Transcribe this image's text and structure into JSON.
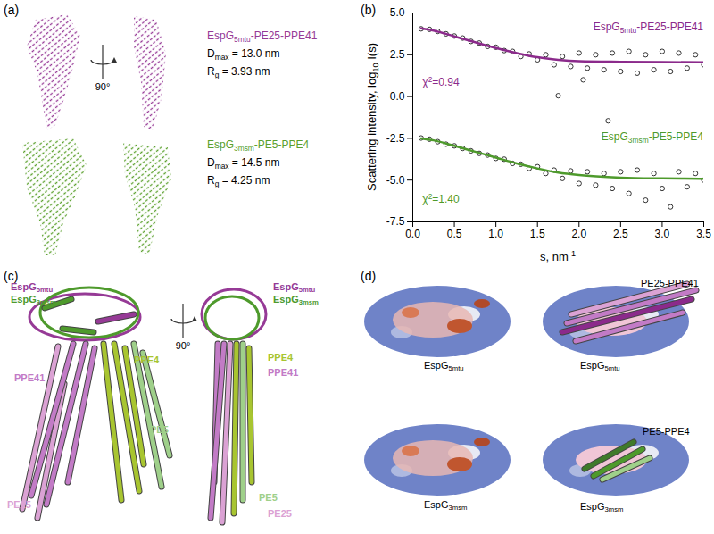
{
  "panel_labels": [
    "(a)",
    "(b)",
    "(c)",
    "(d)"
  ],
  "panel_a": {
    "rotation": "90°",
    "models": [
      {
        "name": [
          "EspG",
          {
            "sub": "5mtu"
          },
          "-PE25-PPE41"
        ],
        "color": "#963a96",
        "dmax": [
          "D",
          {
            "sub": "max"
          },
          " = 13.0 nm"
        ],
        "rg": [
          "R",
          {
            "sub": "g"
          },
          " = 3.93 nm"
        ]
      },
      {
        "name": [
          "EspG",
          {
            "sub": "3msm"
          },
          "-PE5-PPE4"
        ],
        "color": "#5aa02c",
        "dmax": [
          "D",
          {
            "sub": "max"
          },
          " = 14.5 nm"
        ],
        "rg": [
          "R",
          {
            "sub": "g"
          },
          " = 4.25 nm"
        ]
      }
    ]
  },
  "chart_data": {
    "type": "scatter",
    "x_label": [
      "s, nm",
      {
        "sup": "-1"
      }
    ],
    "y_label": [
      "Scattering intensity, log",
      {
        "sub": "10"
      },
      " I(s)"
    ],
    "xlim": [
      0,
      3.5
    ],
    "xticks": [
      {
        "value": 0,
        "label": "0.0"
      },
      0.5,
      {
        "value": 1,
        "label": "1.0"
      },
      1.5,
      {
        "value": 2,
        "label": "2.0"
      },
      2.5,
      {
        "value": 3,
        "label": "3.0"
      },
      3.5
    ],
    "ylim": [
      -7.5,
      5
    ],
    "yticks": [
      -7.5,
      {
        "value": -5,
        "label": "-5.0"
      },
      -2.5,
      {
        "value": 0,
        "label": "0.0"
      },
      2.5,
      {
        "value": 5,
        "label": "5.0"
      }
    ],
    "grid": false,
    "series": [
      {
        "type": "scatter",
        "marker": "circle",
        "color": "#000000",
        "x": [
          0.1,
          0.2,
          0.3,
          0.4,
          0.5,
          0.6,
          0.7,
          0.8,
          0.9,
          1.0,
          1.1,
          1.2,
          1.3,
          1.4,
          1.5,
          1.6,
          1.7,
          1.75,
          1.8,
          1.9,
          2.0,
          2.05,
          2.1,
          2.2,
          2.3,
          2.35,
          2.4,
          2.5,
          2.6,
          2.7,
          2.8,
          2.9,
          3.0,
          3.1,
          3.2,
          3.3,
          3.4,
          3.5
        ],
        "values": [
          4.05,
          4.02,
          3.9,
          3.75,
          3.62,
          3.5,
          3.3,
          3.2,
          3.0,
          2.95,
          2.75,
          2.7,
          2.4,
          2.55,
          2.2,
          2.5,
          1.9,
          0.05,
          2.4,
          1.8,
          2.6,
          1.0,
          1.7,
          2.5,
          1.6,
          -1.45,
          2.6,
          1.5,
          2.7,
          1.4,
          2.5,
          1.6,
          2.7,
          1.5,
          2.6,
          1.7,
          2.5,
          1.9
        ]
      },
      {
        "name": [
          "EspG",
          {
            "sub": "5mtu"
          },
          "-PE25-PPE41"
        ],
        "type": "line",
        "color": "#8b2a8b",
        "annotation": [
          "χ",
          {
            "sup": "2"
          },
          "=0.94"
        ],
        "x": [
          0.1,
          0.25,
          0.5,
          0.75,
          1.0,
          1.25,
          1.5,
          1.75,
          2.0,
          2.5,
          3.0,
          3.5
        ],
        "values": [
          4.08,
          3.95,
          3.6,
          3.25,
          2.9,
          2.6,
          2.35,
          2.2,
          2.12,
          2.08,
          2.06,
          2.05
        ]
      },
      {
        "type": "scatter",
        "marker": "circle",
        "color": "#000000",
        "x": [
          0.1,
          0.2,
          0.3,
          0.4,
          0.5,
          0.6,
          0.7,
          0.8,
          0.9,
          1.0,
          1.1,
          1.2,
          1.3,
          1.4,
          1.5,
          1.6,
          1.7,
          1.8,
          1.9,
          2.0,
          2.1,
          2.2,
          2.3,
          2.4,
          2.5,
          2.6,
          2.7,
          2.8,
          2.9,
          3.0,
          3.1,
          3.2,
          3.3,
          3.4,
          3.5
        ],
        "values": [
          -2.48,
          -2.55,
          -2.7,
          -2.85,
          -2.95,
          -3.1,
          -3.25,
          -3.4,
          -3.5,
          -3.7,
          -3.75,
          -4.0,
          -4.05,
          -4.3,
          -4.2,
          -4.6,
          -4.4,
          -4.9,
          -4.45,
          -5.2,
          -4.5,
          -5.3,
          -4.6,
          -5.5,
          -4.5,
          -5.8,
          -4.4,
          -6.2,
          -4.6,
          -5.5,
          -6.6,
          -4.5,
          -5.4,
          -4.6,
          -5.0
        ]
      },
      {
        "name": [
          "EspG",
          {
            "sub": "3msm"
          },
          "-PE5-PPE4"
        ],
        "type": "line",
        "color": "#4e9a2c",
        "annotation": [
          "χ",
          {
            "sup": "2"
          },
          "=1.40"
        ],
        "x": [
          0.1,
          0.25,
          0.5,
          0.75,
          1.0,
          1.25,
          1.5,
          1.75,
          2.0,
          2.5,
          3.0,
          3.5
        ],
        "values": [
          -2.5,
          -2.62,
          -2.95,
          -3.3,
          -3.65,
          -4.0,
          -4.3,
          -4.55,
          -4.7,
          -4.85,
          -4.9,
          -4.92
        ]
      }
    ]
  },
  "panel_c": {
    "rotation": "90°",
    "views": [
      {
        "labels": [
          {
            "text": [
              "EspG",
              {
                "sub": "5mtu"
              }
            ],
            "color": "#963a96"
          },
          {
            "text": [
              "EspG",
              {
                "sub": "3msm"
              }
            ],
            "color": "#4e9a2c"
          },
          {
            "text": "PPE4",
            "color": "#a8c530"
          },
          {
            "text": "PPE41",
            "color": "#c27bc6"
          },
          {
            "text": "PE5",
            "color": "#9fd08a"
          },
          {
            "text": "PE25",
            "color": "#dba2d4"
          }
        ]
      },
      {
        "labels": [
          {
            "text": [
              "EspG",
              {
                "sub": "5mtu"
              }
            ],
            "color": "#963a96"
          },
          {
            "text": [
              "EspG",
              {
                "sub": "3msm"
              }
            ],
            "color": "#4e9a2c"
          },
          {
            "text": "PPE4",
            "color": "#a8c530"
          },
          {
            "text": "PPE41",
            "color": "#c27bc6"
          },
          {
            "text": "PE5",
            "color": "#9fd08a"
          },
          {
            "text": "PE25",
            "color": "#dba2d4"
          }
        ]
      }
    ]
  },
  "panel_d": {
    "views": [
      {
        "label": [
          "EspG",
          {
            "sub": "5mtu"
          }
        ]
      },
      {
        "complex": "PE25-PPE41",
        "label": [
          "EspG",
          {
            "sub": "5mtu"
          }
        ]
      },
      {
        "label": [
          "EspG",
          {
            "sub": "3msm"
          }
        ]
      },
      {
        "complex": "PE5-PPE4",
        "label": [
          "EspG",
          {
            "sub": "3msm"
          }
        ]
      }
    ]
  }
}
